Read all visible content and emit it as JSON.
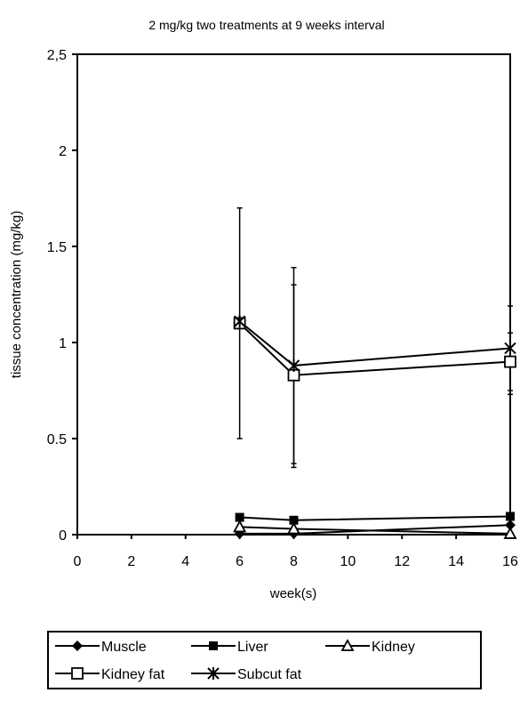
{
  "chart_data": {
    "type": "line",
    "title": "2 mg/kg two treatments at 9 weeks interval",
    "xlabel": "week(s)",
    "ylabel": "tissue concentration (mg/kg)",
    "xlim": [
      0,
      16
    ],
    "ylim": [
      0,
      2.5
    ],
    "x_ticks": [
      "0",
      "2",
      "4",
      "6",
      "8",
      "10",
      "12",
      "14",
      "16"
    ],
    "y_ticks": [
      "0",
      "0.5",
      "1",
      "1.5",
      "2",
      "2,5"
    ],
    "grid": false,
    "legend_position": "bottom",
    "x": [
      6,
      8,
      16
    ],
    "series": [
      {
        "name": "Muscle",
        "marker": "diamond-filled",
        "values": [
          0.005,
          0.005,
          0.05
        ]
      },
      {
        "name": "Liver",
        "marker": "square-filled",
        "values": [
          0.09,
          0.075,
          0.095
        ]
      },
      {
        "name": "Kidney",
        "marker": "triangle-open",
        "values": [
          0.04,
          0.03,
          0.005
        ]
      },
      {
        "name": "Kidney fat",
        "marker": "square-open",
        "values": [
          1.1,
          0.83,
          0.9
        ],
        "error_low": [
          0.5,
          0.35,
          0.75
        ],
        "error_high": [
          1.7,
          1.3,
          1.05
        ]
      },
      {
        "name": "Subcut fat",
        "marker": "star",
        "values": [
          1.11,
          0.88,
          0.97
        ],
        "error_low": [
          1.11,
          0.37,
          0.73
        ],
        "error_high": [
          1.11,
          1.39,
          1.19
        ]
      }
    ]
  }
}
